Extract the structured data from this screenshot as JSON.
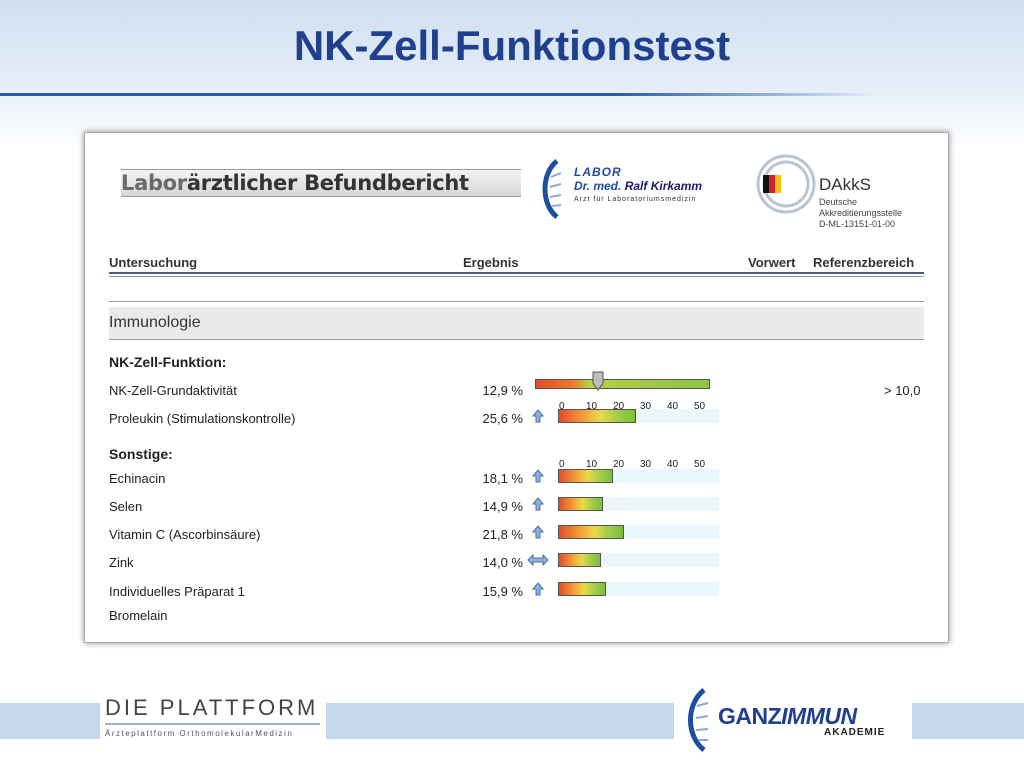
{
  "slide": {
    "title": "NK-Zell-Funktionstest"
  },
  "report": {
    "heading_prefix": "Labor",
    "heading_rest": "ärztlicher Befundbericht",
    "labor": {
      "line1": "LABOR",
      "line2a": "Dr. med. ",
      "line2b": "Ralf Kirkamm",
      "line3": "Arzt für Laboratoriumsmedizin"
    },
    "dakks": {
      "name": "DAkkS",
      "line1": "Deutsche",
      "line2": "Akkreditierungsstelle",
      "line3": "D-ML-13151-01-00"
    },
    "columns": {
      "test": "Untersuchung",
      "result": "Ergebnis",
      "previous": "Vorwert",
      "reference": "Referenzbereich"
    },
    "section": "Immunologie",
    "group1_title": "NK-Zell-Funktion:",
    "group2_title": "Sonstige:",
    "scale_ticks": [
      "0",
      "10",
      "20",
      "30",
      "40",
      "50"
    ],
    "rows": [
      {
        "label": "NK-Zell-Grundaktivität",
        "value": "12,9 %",
        "pct": 12.9,
        "indicator": "marker",
        "reference": "> 10,0"
      },
      {
        "label": "Proleukin (Stimulationskontrolle)",
        "value": "25,6 %",
        "pct": 25.6,
        "indicator": "up"
      },
      {
        "label": "Echinacin",
        "value": "18,1 %",
        "pct": 18.1,
        "indicator": "up"
      },
      {
        "label": "Selen",
        "value": "14,9 %",
        "pct": 14.9,
        "indicator": "up"
      },
      {
        "label": "Vitamin C (Ascorbinsäure)",
        "value": "21,8 %",
        "pct": 21.8,
        "indicator": "up"
      },
      {
        "label": "Zink",
        "value": "14,0 %",
        "pct": 14.0,
        "indicator": "both"
      },
      {
        "label": "Individuelles Präparat 1",
        "value": "15,9 %",
        "pct": 15.9,
        "indicator": "up"
      }
    ],
    "extra_label": "Bromelain"
  },
  "footer": {
    "plattform_title": "DIE PLATTFORM",
    "plattform_sub": "Ärzteplattform OrthomolekularMedizin",
    "ganz_a": "GANZ",
    "ganz_b": "IMMUN",
    "ganz_sub": "AKADEMIE"
  }
}
